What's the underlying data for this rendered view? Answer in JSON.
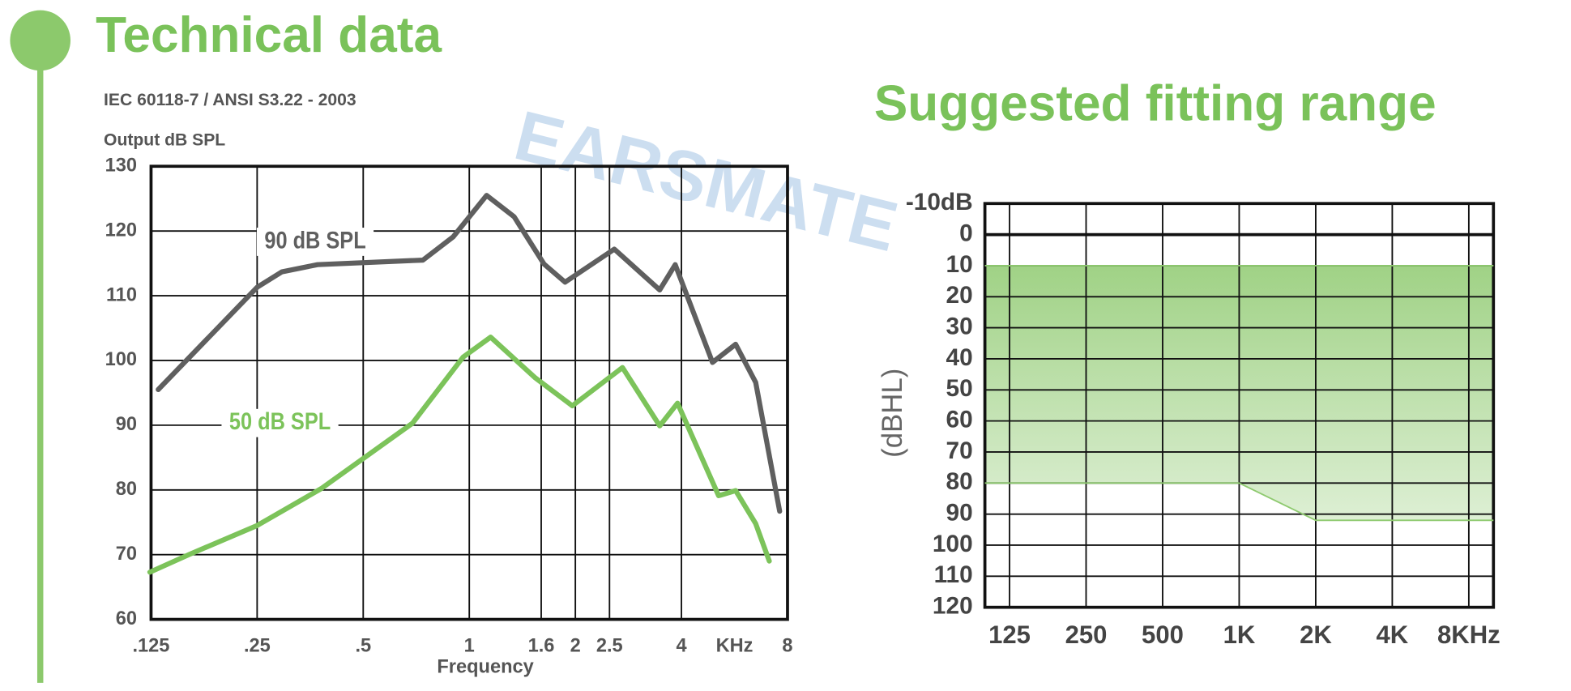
{
  "watermark": "EARSMATE",
  "chart_data": [
    {
      "type": "line",
      "title": "Technical data",
      "subtitle": "IEC 60118-7 / ANSI S3.22 - 2003",
      "y_label": "Output dB SPL",
      "x_label": "Frequency",
      "x_unit": "KHz",
      "log_x": true,
      "grid": true,
      "xlim": [
        0.125,
        8
      ],
      "xticks": [
        {
          "value": 0.125,
          "label": ".125"
        },
        {
          "value": 0.25,
          "label": ".25"
        },
        {
          "value": 0.5,
          "label": ".5"
        },
        1,
        1.6,
        2,
        2.5,
        4,
        8
      ],
      "ylim": [
        60,
        130
      ],
      "yticks": [
        60,
        70,
        80,
        90,
        100,
        110,
        120,
        130
      ],
      "series": [
        {
          "name": "90 dB SPL",
          "color": "#5f5f5f",
          "x": [
            0.131,
            0.25,
            0.294,
            0.371,
            0.739,
            0.9,
            1.12,
            1.34,
            1.63,
            1.87,
            2.58,
            3.47,
            3.84,
            4.9,
            5.7,
            6.5,
            7.6
          ],
          "values": [
            95.5,
            111.3,
            113.7,
            114.8,
            115.5,
            119.1,
            125.5,
            122.2,
            114.9,
            112.1,
            117.2,
            110.9,
            114.8,
            99.7,
            102.5,
            96.6,
            76.7
          ]
        },
        {
          "name": "50 dB SPL",
          "color": "#7cc35a",
          "x": [
            0.124,
            0.16,
            0.25,
            0.38,
            0.69,
            0.96,
            1.15,
            1.54,
            1.96,
            2.72,
            3.47,
            3.9,
            5.1,
            5.7,
            6.5,
            7.1
          ],
          "values": [
            67.3,
            70,
            74.5,
            80.2,
            90.3,
            100.5,
            103.6,
            97.3,
            93,
            98.9,
            89.9,
            93.4,
            79.1,
            79.9,
            74.8,
            69
          ]
        }
      ]
    },
    {
      "type": "range_area",
      "title": "Suggested fitting range",
      "y_label": "(dBHL)",
      "log_x": true,
      "grid": true,
      "color": "#8fca70",
      "xlim": [
        100,
        10000
      ],
      "xticks": [
        125,
        250,
        500,
        {
          "value": 1000,
          "label": "1K"
        },
        {
          "value": 2000,
          "label": "2K"
        },
        {
          "value": 4000,
          "label": "4K"
        },
        {
          "value": 8000,
          "label": "8KHz"
        }
      ],
      "ylim": [
        -10,
        120
      ],
      "y_inverted": true,
      "yticks": [
        {
          "value": -10,
          "label": "-10dB"
        },
        0,
        10,
        20,
        30,
        40,
        50,
        60,
        70,
        80,
        90,
        100,
        110,
        120
      ],
      "x": [
        100,
        1000,
        2000,
        10000
      ],
      "band_top": [
        10,
        10,
        10,
        10
      ],
      "band_bottom": [
        80,
        80,
        92,
        92
      ]
    }
  ]
}
